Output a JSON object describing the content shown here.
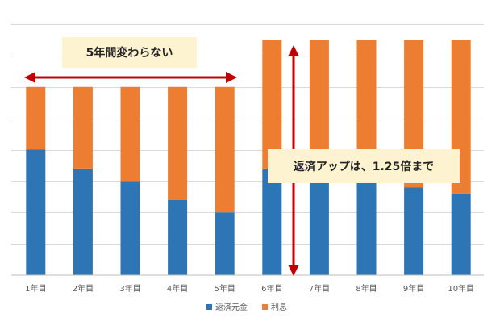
{
  "chart_data": {
    "type": "bar",
    "stacked": true,
    "categories": [
      "1年目",
      "2年目",
      "3年目",
      "4年目",
      "5年目",
      "6年目",
      "7年目",
      "8年目",
      "9年目",
      "10年目"
    ],
    "series": [
      {
        "name": "返済元金",
        "color": "#2e75b6",
        "values": [
          4.0,
          3.4,
          3.0,
          2.4,
          2.0,
          3.4,
          3.0,
          3.0,
          2.8,
          2.6
        ]
      },
      {
        "name": "利息",
        "color": "#ed7d31",
        "values": [
          2.0,
          2.6,
          3.0,
          3.6,
          4.0,
          4.1,
          4.5,
          4.5,
          4.7,
          4.9
        ]
      }
    ],
    "ylim": [
      0,
      8
    ],
    "grid": true,
    "legend": "bottom-center",
    "annotations": [
      {
        "text": "5年間変わらない",
        "span": [
          "1年目",
          "5年目"
        ]
      },
      {
        "text": "返済アップは、1.25倍まで",
        "at": "6年目"
      }
    ]
  },
  "colors": {
    "annotation_arrow": "#c00000",
    "callout_fill": "#fdf3d0",
    "gridline": "#d9d9d9"
  }
}
